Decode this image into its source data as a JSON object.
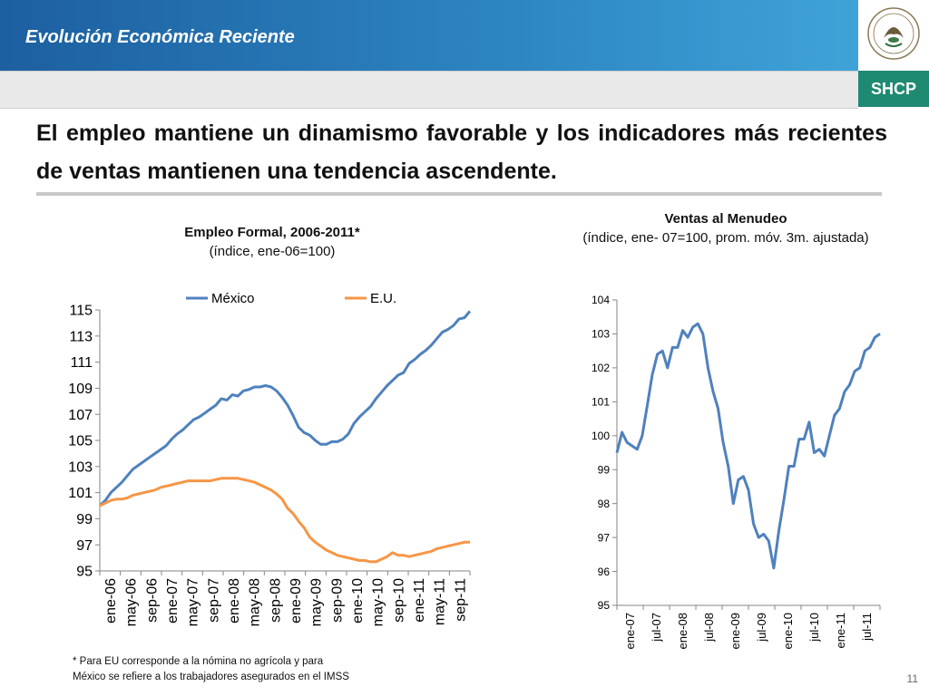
{
  "header": {
    "title": "Evolución Económica Reciente",
    "logo_label": "SHCP"
  },
  "headline": "El empleo mantiene un dinamismo favorable y los indicadores más recientes de ventas mantienen una tendencia ascendente.",
  "footnote": {
    "line1": "* Para EU corresponde a la nómina no agrícola y para",
    "line2": "México se refiere a los trabajadores asegurados en el IMSS"
  },
  "page_number": "11",
  "colors": {
    "mexico": "#4f81bd",
    "eu": "#f79646",
    "ventas": "#4f81bd"
  },
  "chart_data": [
    {
      "type": "line",
      "title": "Empleo Formal, 2006-2011*",
      "subtitle": "(índice, ene-06=100)",
      "yticks": [
        95,
        97,
        99,
        101,
        103,
        105,
        107,
        109,
        111,
        113,
        115
      ],
      "ylim": [
        95,
        115
      ],
      "xticks": [
        "ene-06",
        "may-06",
        "sep-06",
        "ene-07",
        "may-07",
        "sep-07",
        "ene-08",
        "may-08",
        "sep-08",
        "ene-09",
        "may-09",
        "sep-09",
        "ene-10",
        "may-10",
        "sep-10",
        "ene-11",
        "may-11",
        "sep-11"
      ],
      "legend_position": "top",
      "series": [
        {
          "name": "México",
          "values": [
            100.0,
            100.4,
            101.0,
            101.4,
            101.8,
            102.3,
            102.8,
            103.1,
            103.4,
            103.7,
            104.0,
            104.3,
            104.6,
            105.1,
            105.5,
            105.8,
            106.2,
            106.6,
            106.8,
            107.1,
            107.4,
            107.7,
            108.2,
            108.1,
            108.5,
            108.4,
            108.8,
            108.9,
            109.1,
            109.1,
            109.2,
            109.1,
            108.8,
            108.3,
            107.7,
            106.9,
            106.0,
            105.6,
            105.4,
            105.0,
            104.7,
            104.7,
            104.9,
            104.9,
            105.1,
            105.5,
            106.3,
            106.8,
            107.2,
            107.6,
            108.2,
            108.7,
            109.2,
            109.6,
            110.0,
            110.2,
            110.9,
            111.2,
            111.6,
            111.9,
            112.3,
            112.8,
            113.3,
            113.5,
            113.8,
            114.3,
            114.4,
            114.9
          ]
        },
        {
          "name": "E.U.",
          "values": [
            100.0,
            100.2,
            100.4,
            100.5,
            100.5,
            100.6,
            100.8,
            100.9,
            101.0,
            101.1,
            101.2,
            101.4,
            101.5,
            101.6,
            101.7,
            101.8,
            101.9,
            101.9,
            101.9,
            101.9,
            101.9,
            102.0,
            102.1,
            102.1,
            102.1,
            102.1,
            102.0,
            101.9,
            101.8,
            101.6,
            101.4,
            101.2,
            100.9,
            100.5,
            99.8,
            99.4,
            98.8,
            98.3,
            97.6,
            97.2,
            96.9,
            96.6,
            96.4,
            96.2,
            96.1,
            96.0,
            95.9,
            95.8,
            95.8,
            95.7,
            95.7,
            95.9,
            96.1,
            96.4,
            96.2,
            96.2,
            96.1,
            96.2,
            96.3,
            96.4,
            96.5,
            96.7,
            96.8,
            96.9,
            97.0,
            97.1,
            97.2,
            97.2
          ]
        }
      ]
    },
    {
      "type": "line",
      "title": "Ventas al Menudeo",
      "subtitle": "(índice, ene- 07=100, prom. móv. 3m. ajustada)",
      "yticks": [
        95,
        96,
        97,
        98,
        99,
        100,
        101,
        102,
        103,
        104
      ],
      "ylim": [
        95,
        104
      ],
      "xticks": [
        "ene-07",
        "jul-07",
        "ene-08",
        "jul-08",
        "ene-09",
        "jul-09",
        "ene-10",
        "jul-10",
        "ene-11",
        "jul-11"
      ],
      "series": [
        {
          "name": "",
          "values": [
            99.5,
            100.1,
            99.8,
            99.7,
            99.6,
            100.0,
            100.9,
            101.8,
            102.4,
            102.5,
            102.0,
            102.6,
            102.6,
            103.1,
            102.9,
            103.2,
            103.3,
            103.0,
            102.0,
            101.3,
            100.8,
            99.8,
            99.1,
            98.0,
            98.7,
            98.8,
            98.4,
            97.4,
            97.0,
            97.1,
            96.9,
            96.1,
            97.2,
            98.1,
            99.1,
            99.1,
            99.9,
            99.9,
            100.4,
            99.5,
            99.6,
            99.4,
            100.0,
            100.6,
            100.8,
            101.3,
            101.5,
            101.9,
            102.0,
            102.5,
            102.6,
            102.9,
            103.0
          ]
        }
      ]
    }
  ]
}
